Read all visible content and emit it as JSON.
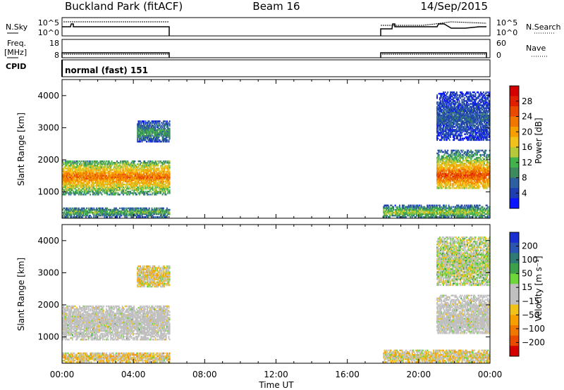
{
  "header": {
    "station": "Buckland Park (fitACF)",
    "beam": "Beam 16",
    "date": "14/Sep/2015"
  },
  "top_panels": {
    "nsky_label": "N.Sky",
    "nsearch_label": "N.Search",
    "freq_label": "Freq.",
    "freq_unit": "[MHz]",
    "nave_label": "Nave",
    "cpid_label": "CPID",
    "cpid_value": "normal (fast) 151",
    "noise_ticks": [
      "10^5",
      "10^0"
    ],
    "noise_right_ticks": [
      "10^5",
      "10^0"
    ],
    "freq_ticks": [
      "18",
      "8"
    ],
    "nave_ticks": [
      "60",
      "0"
    ]
  },
  "axes": {
    "xlabel": "Time UT",
    "ylabel_power": "Slant Range [km]",
    "ylabel_velocity": "Slant Range [km]",
    "x_ticks": [
      "00:00",
      "04:00",
      "08:00",
      "12:00",
      "16:00",
      "20:00",
      "00:00"
    ],
    "y_ticks": [
      "1000",
      "2000",
      "3000",
      "4000"
    ]
  },
  "colorbars": {
    "power": {
      "label": "Power [dB]",
      "ticks": [
        "4",
        "8",
        "12",
        "16",
        "20",
        "24",
        "28"
      ],
      "colors": [
        "#0a14ff",
        "#1f3fb0",
        "#2e5fa0",
        "#3d8a5e",
        "#43b24c",
        "#b6c93a",
        "#f0c21a",
        "#f5a000",
        "#f07800",
        "#e84a00",
        "#e02000",
        "#d40000"
      ]
    },
    "velocity": {
      "label": "Velocity [m s⁻¹]",
      "ticks": [
        "200",
        "100",
        "50",
        "15",
        "−15",
        "−50",
        "−100",
        "−200"
      ],
      "colors": [
        "#1a2fd0",
        "#2a55b0",
        "#2f7a72",
        "#3fa04c",
        "#6ed63a",
        "#c0c0c0",
        "#c0c0c0",
        "#f0c21a",
        "#f5a000",
        "#f07800",
        "#e84a00",
        "#d40000"
      ]
    }
  },
  "chart_data": [
    {
      "type": "heatmap",
      "title": "Power",
      "xlabel": "Time UT",
      "ylabel": "Slant Range [km]",
      "xlim": [
        0,
        24
      ],
      "ylim": [
        180,
        4500
      ],
      "colorbar_label": "Power [dB]",
      "colorbar_range": [
        0,
        30
      ],
      "echo_regions": [
        {
          "t_start": 0.0,
          "t_end": 6.0,
          "r_low": 900,
          "r_high": 1950,
          "r_peak": 1450,
          "level": 22
        },
        {
          "t_start": 0.0,
          "t_end": 6.0,
          "r_low": 200,
          "r_high": 500,
          "r_peak": 350,
          "level": 12
        },
        {
          "t_start": 4.2,
          "t_end": 6.0,
          "r_low": 2550,
          "r_high": 3200,
          "r_peak": 2850,
          "level": 10
        },
        {
          "t_start": 21.0,
          "t_end": 24.0,
          "r_low": 1100,
          "r_high": 2300,
          "r_peak": 1500,
          "level": 24
        },
        {
          "t_start": 18.0,
          "t_end": 24.0,
          "r_low": 200,
          "r_high": 600,
          "r_peak": 350,
          "level": 14
        },
        {
          "t_start": 21.0,
          "t_end": 24.0,
          "r_low": 2600,
          "r_high": 4100,
          "r_peak": 3300,
          "level": 6
        }
      ]
    },
    {
      "type": "heatmap",
      "title": "Velocity",
      "xlabel": "Time UT",
      "ylabel": "Slant Range [km]",
      "xlim": [
        0,
        24
      ],
      "ylim": [
        180,
        4500
      ],
      "colorbar_label": "Velocity [m s⁻¹]",
      "colorbar_range": [
        -250,
        250
      ],
      "echo_regions": [
        {
          "t_start": 0.0,
          "t_end": 6.0,
          "r_low": 900,
          "r_high": 1950,
          "r_peak": 1450,
          "level": 0
        },
        {
          "t_start": 0.0,
          "t_end": 6.0,
          "r_low": 200,
          "r_high": 500,
          "r_peak": 350,
          "level": -40
        },
        {
          "t_start": 4.2,
          "t_end": 6.0,
          "r_low": 2550,
          "r_high": 3200,
          "r_peak": 2850,
          "level": -30
        },
        {
          "t_start": 21.0,
          "t_end": 24.0,
          "r_low": 1100,
          "r_high": 2300,
          "r_peak": 1500,
          "level": 0
        },
        {
          "t_start": 18.0,
          "t_end": 24.0,
          "r_low": 200,
          "r_high": 600,
          "r_peak": 350,
          "level": -30
        },
        {
          "t_start": 21.0,
          "t_end": 24.0,
          "r_low": 2600,
          "r_high": 4100,
          "r_peak": 3300,
          "level": 10
        }
      ],
      "ground_scatter_color": "#c0c0c0"
    }
  ]
}
